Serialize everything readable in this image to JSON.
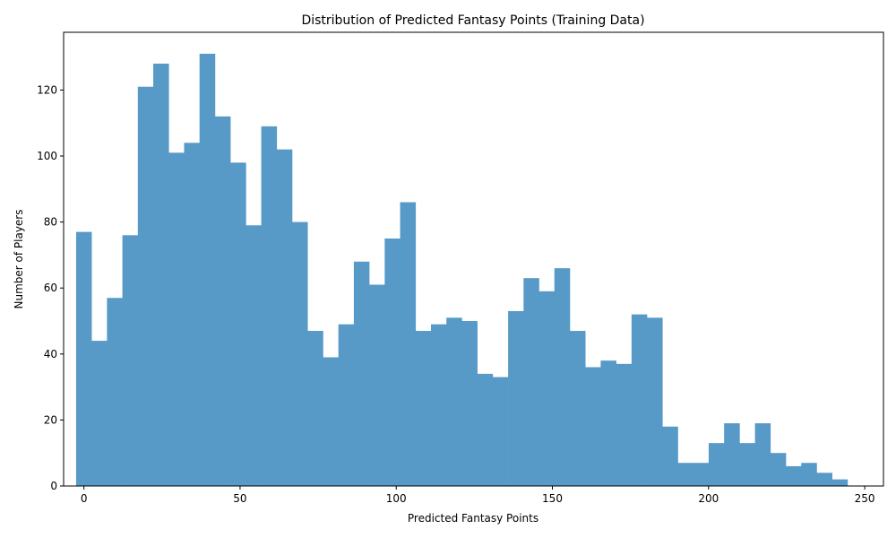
{
  "chart_data": {
    "type": "histogram",
    "title": "Distribution of Predicted Fantasy Points (Training Data)",
    "xlabel": "Predicted Fantasy Points",
    "ylabel": "Number of Players",
    "bar_color": "#5799c7",
    "xlim": [
      -6.5,
      256
    ],
    "ylim": [
      0,
      137.5
    ],
    "xticks": [
      0,
      50,
      100,
      150,
      200,
      250
    ],
    "yticks": [
      0,
      20,
      40,
      60,
      80,
      100,
      120
    ],
    "bin_start": -2.5,
    "bin_width": 4.94,
    "counts": [
      77,
      44,
      57,
      76,
      121,
      128,
      101,
      104,
      131,
      112,
      98,
      79,
      109,
      102,
      80,
      47,
      39,
      49,
      68,
      61,
      75,
      86,
      47,
      49,
      51,
      50,
      34,
      33,
      53,
      63,
      59,
      66,
      47,
      36,
      38,
      37,
      52,
      51,
      18,
      7,
      7,
      13,
      19,
      13,
      19,
      10,
      6,
      7,
      4,
      2
    ],
    "grid": false,
    "legend": "none"
  }
}
